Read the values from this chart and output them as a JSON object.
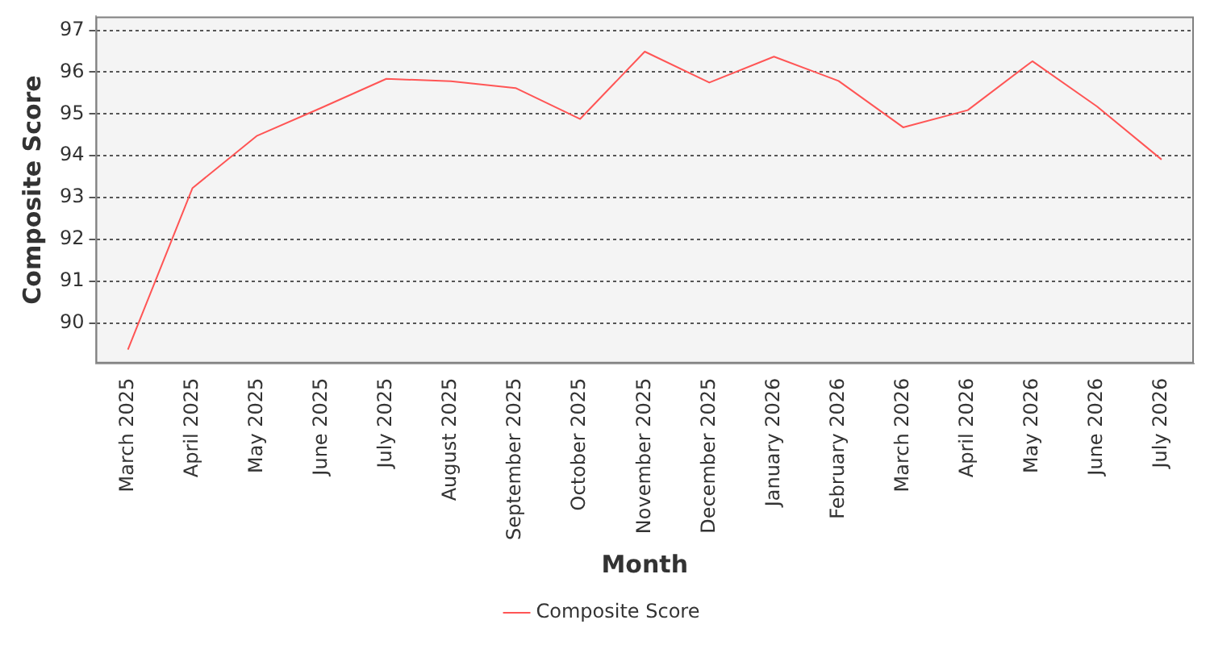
{
  "chart_data": {
    "type": "line",
    "xlabel": "Month",
    "ylabel": "Composite Score",
    "categories": [
      "March 2025",
      "April 2025",
      "May 2025",
      "June 2025",
      "July 2025",
      "August 2025",
      "September 2025",
      "October 2025",
      "November 2025",
      "December 2025",
      "January 2026",
      "February 2026",
      "March 2026",
      "April 2026",
      "May 2026",
      "June 2026",
      "July 2026"
    ],
    "series": [
      {
        "name": "Composite Score",
        "color": "#ff5555",
        "values": [
          89.37,
          93.23,
          94.48,
          95.15,
          95.84,
          95.78,
          95.62,
          94.88,
          96.49,
          95.75,
          96.37,
          95.79,
          94.68,
          95.09,
          96.26,
          95.18,
          93.91
        ]
      }
    ],
    "ylim": [
      89.04,
      97.33
    ],
    "yticks": [
      90,
      91,
      92,
      93,
      94,
      95,
      96,
      97
    ],
    "grid": "y",
    "legend": "bottom",
    "marker": "none",
    "line_style": "solid"
  }
}
